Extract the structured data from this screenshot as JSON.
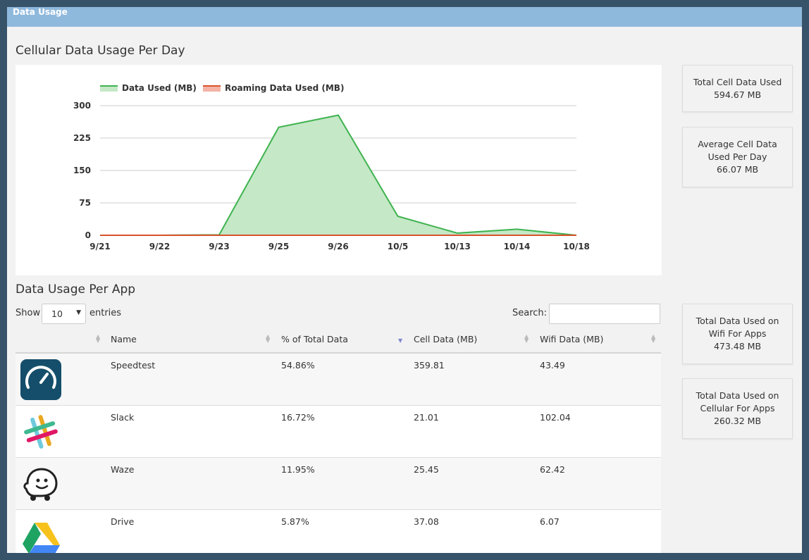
{
  "window": {
    "title": "Data Usage"
  },
  "chart_section": {
    "title": "Cellular Data Usage Per Day"
  },
  "chart_data": {
    "type": "area",
    "categories": [
      "9/21",
      "9/22",
      "9/23",
      "9/25",
      "9/26",
      "10/5",
      "10/13",
      "10/14",
      "10/18"
    ],
    "series": [
      {
        "name": "Data Used (MB)",
        "color": "#3fb34f",
        "fill": "#c5e8c7",
        "values": [
          0,
          0,
          1,
          250,
          278,
          44,
          5,
          14,
          0
        ]
      },
      {
        "name": "Roaming Data Used (MB)",
        "color": "#d9532c",
        "fill": "#f4b3a4",
        "values": [
          0,
          0,
          0,
          0,
          0,
          0,
          0,
          0,
          0
        ]
      }
    ],
    "y_ticks": [
      "300",
      "225",
      "150",
      "75",
      "0"
    ],
    "ylim": [
      0,
      300
    ],
    "grid": true,
    "legend_position": "top-left"
  },
  "stats": {
    "total_cell": {
      "label_lines": [
        "Total Cell Data Used"
      ],
      "value": "594.67 MB"
    },
    "avg_cell": {
      "label_lines": [
        "Average Cell Data",
        "Used Per Day"
      ],
      "value": "66.07 MB"
    },
    "wifi_apps": {
      "label_lines": [
        "Total Data Used on",
        "Wifi For Apps"
      ],
      "value": "473.48 MB"
    },
    "cell_apps": {
      "label_lines": [
        "Total Data Used on",
        "Cellular For Apps"
      ],
      "value": "260.32 MB"
    }
  },
  "app_section": {
    "title": "Data Usage Per App"
  },
  "table_controls": {
    "show_label": "Show",
    "entries_value": "10",
    "entries_label": "entries",
    "search_label": "Search:",
    "search_value": ""
  },
  "table": {
    "headers": {
      "name": "Name",
      "percent": "% of Total Data",
      "cell": "Cell Data (MB)",
      "wifi": "Wifi Data (MB)"
    },
    "rows": [
      {
        "icon": "speedtest-icon",
        "name": "Speedtest",
        "percent": "54.86%",
        "cell": "359.81",
        "wifi": "43.49"
      },
      {
        "icon": "slack-icon",
        "name": "Slack",
        "percent": "16.72%",
        "cell": "21.01",
        "wifi": "102.04"
      },
      {
        "icon": "waze-icon",
        "name": "Waze",
        "percent": "11.95%",
        "cell": "25.45",
        "wifi": "62.42"
      },
      {
        "icon": "drive-icon",
        "name": "Drive",
        "percent": "5.87%",
        "cell": "37.08",
        "wifi": "6.07"
      }
    ]
  }
}
